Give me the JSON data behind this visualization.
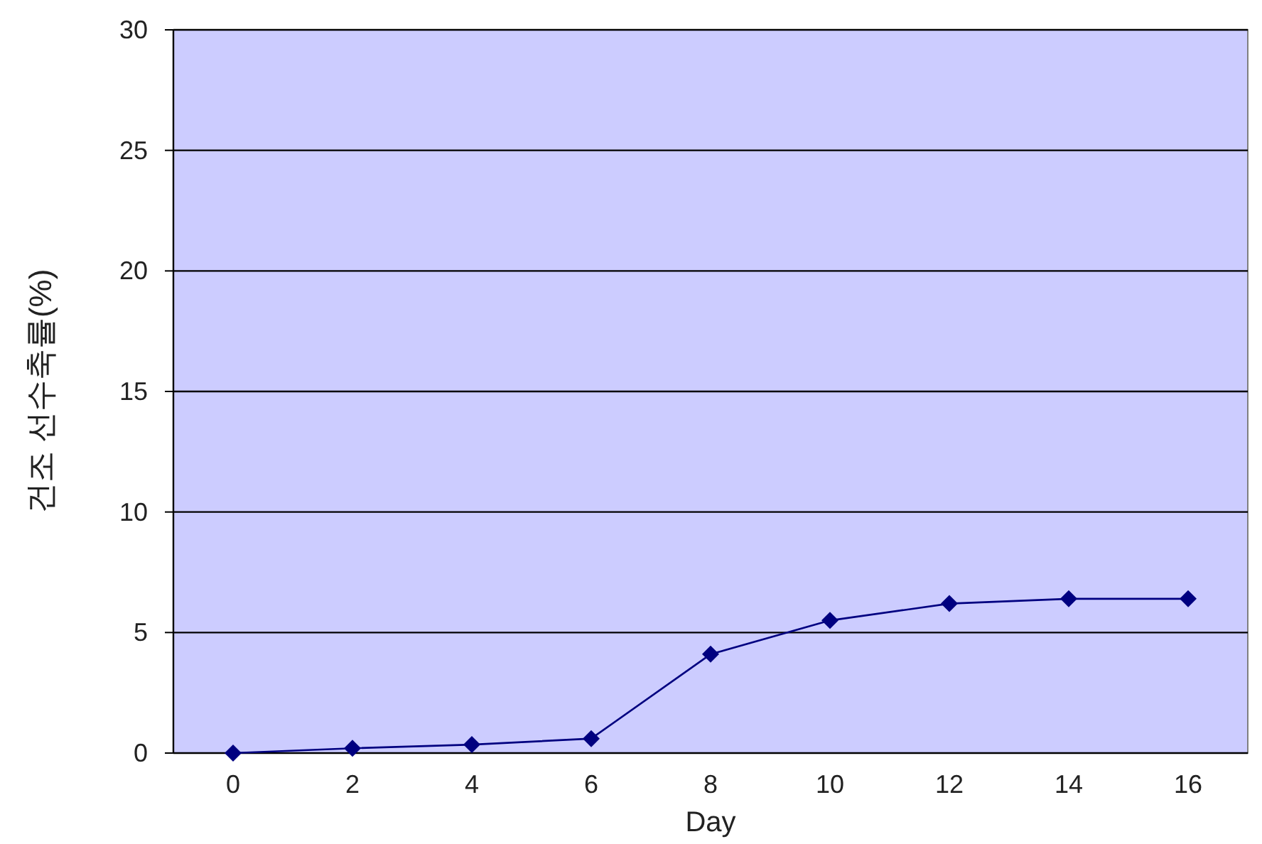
{
  "chart_data": {
    "type": "line",
    "xlabel": "Day",
    "ylabel": "건조 선수축률(%)",
    "categories": [
      "0",
      "2",
      "4",
      "6",
      "8",
      "10",
      "12",
      "14",
      "16"
    ],
    "series": [
      {
        "color": "#000080",
        "values": [
          0,
          0.2,
          0.35,
          0.6,
          4.1,
          5.5,
          6.2,
          6.4,
          6.4
        ]
      }
    ],
    "ylim": [
      0,
      30
    ],
    "yticks": [
      0,
      5,
      10,
      15,
      20,
      25,
      30
    ],
    "grid": "y",
    "marker": "diamond",
    "line_style": "solid"
  }
}
